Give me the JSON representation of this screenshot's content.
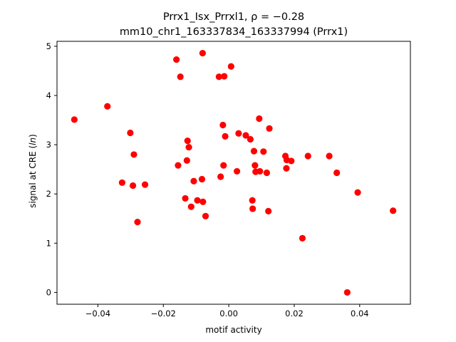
{
  "chart_data": {
    "type": "scatter",
    "title_line1": "Prrx1_Isx_Prrxl1, ρ = −0.28",
    "title_line2": "mm10_chr1_163337834_163337994 (Prrx1)",
    "xlabel": "motif activity",
    "ylabel": "signal at CRE (ln)",
    "xlim": [
      -0.0525,
      0.0555
    ],
    "ylim": [
      -0.24,
      5.1
    ],
    "x_ticks": [
      -0.04,
      -0.02,
      0.0,
      0.02,
      0.04
    ],
    "x_tick_labels": [
      "−0.04",
      "−0.02",
      "0.00",
      "0.02",
      "0.04"
    ],
    "y_ticks": [
      0,
      1,
      2,
      3,
      4,
      5
    ],
    "y_tick_labels": [
      "0",
      "1",
      "2",
      "3",
      "4",
      "5"
    ],
    "grid": false,
    "marker_color": "#ff0000",
    "points": [
      {
        "x": -0.0472,
        "y": 3.51
      },
      {
        "x": -0.0371,
        "y": 3.78
      },
      {
        "x": -0.0326,
        "y": 2.23
      },
      {
        "x": -0.0301,
        "y": 3.24
      },
      {
        "x": -0.0293,
        "y": 2.17
      },
      {
        "x": -0.029,
        "y": 2.8
      },
      {
        "x": -0.0279,
        "y": 1.43
      },
      {
        "x": -0.0256,
        "y": 2.19
      },
      {
        "x": -0.016,
        "y": 4.73
      },
      {
        "x": -0.0155,
        "y": 2.58
      },
      {
        "x": -0.0148,
        "y": 4.38
      },
      {
        "x": -0.0133,
        "y": 1.91
      },
      {
        "x": -0.0128,
        "y": 2.68
      },
      {
        "x": -0.0126,
        "y": 3.08
      },
      {
        "x": -0.0122,
        "y": 2.95
      },
      {
        "x": -0.0115,
        "y": 1.74
      },
      {
        "x": -0.0107,
        "y": 2.26
      },
      {
        "x": -0.0096,
        "y": 1.87
      },
      {
        "x": -0.0082,
        "y": 2.3
      },
      {
        "x": -0.008,
        "y": 4.86
      },
      {
        "x": -0.0079,
        "y": 1.84
      },
      {
        "x": -0.0071,
        "y": 1.55
      },
      {
        "x": -0.003,
        "y": 4.38
      },
      {
        "x": -0.0025,
        "y": 2.35
      },
      {
        "x": -0.0018,
        "y": 3.4
      },
      {
        "x": -0.0016,
        "y": 2.58
      },
      {
        "x": -0.0014,
        "y": 4.39
      },
      {
        "x": -0.0011,
        "y": 3.17
      },
      {
        "x": 0.0007,
        "y": 4.59
      },
      {
        "x": 0.0025,
        "y": 2.46
      },
      {
        "x": 0.003,
        "y": 3.23
      },
      {
        "x": 0.0052,
        "y": 3.19
      },
      {
        "x": 0.0066,
        "y": 3.11
      },
      {
        "x": 0.0072,
        "y": 1.87
      },
      {
        "x": 0.0073,
        "y": 1.7
      },
      {
        "x": 0.0077,
        "y": 2.87
      },
      {
        "x": 0.008,
        "y": 2.58
      },
      {
        "x": 0.0082,
        "y": 2.45
      },
      {
        "x": 0.0093,
        "y": 3.53
      },
      {
        "x": 0.0095,
        "y": 2.46
      },
      {
        "x": 0.0106,
        "y": 2.86
      },
      {
        "x": 0.0116,
        "y": 2.43
      },
      {
        "x": 0.0121,
        "y": 1.65
      },
      {
        "x": 0.0124,
        "y": 3.33
      },
      {
        "x": 0.0173,
        "y": 2.77
      },
      {
        "x": 0.0176,
        "y": 2.52
      },
      {
        "x": 0.0177,
        "y": 2.69
      },
      {
        "x": 0.0191,
        "y": 2.67
      },
      {
        "x": 0.0225,
        "y": 1.1
      },
      {
        "x": 0.0242,
        "y": 2.77
      },
      {
        "x": 0.0307,
        "y": 2.77
      },
      {
        "x": 0.033,
        "y": 2.43
      },
      {
        "x": 0.0362,
        "y": 0.0
      },
      {
        "x": 0.0394,
        "y": 2.03
      },
      {
        "x": 0.0502,
        "y": 1.66
      }
    ]
  }
}
